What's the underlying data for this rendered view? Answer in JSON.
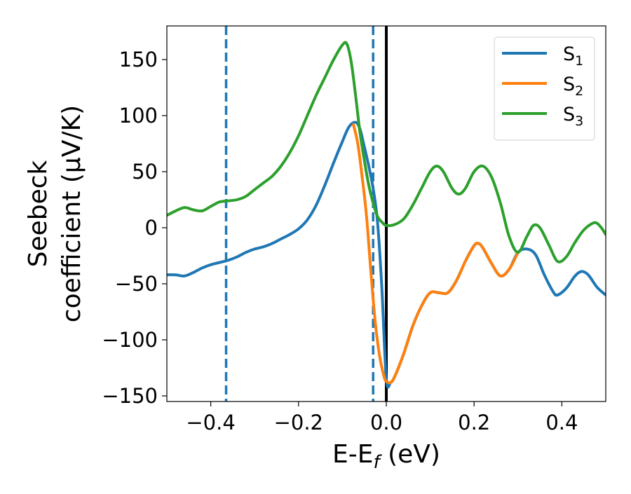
{
  "chart_data": {
    "type": "line",
    "xlabel": "E-E",
    "xlabel_sub": "f",
    "xlabel_unit": " (eV)",
    "ylabel_line1": "Seebeck",
    "ylabel_line2": "coefficient  (μV/K)",
    "xlim": [
      -0.5,
      0.5
    ],
    "ylim": [
      -155,
      180
    ],
    "xticks": [
      -0.4,
      -0.2,
      0.0,
      0.2,
      0.4
    ],
    "xtick_labels": [
      "−0.4",
      "−0.2",
      "0.0",
      "0.2",
      "0.4"
    ],
    "yticks": [
      -150,
      -100,
      -50,
      0,
      50,
      100,
      150
    ],
    "ytick_labels": [
      "−150",
      "−100",
      "−50",
      "0",
      "50",
      "100",
      "150"
    ],
    "grid": false,
    "legend_position": "top-right",
    "vertical_lines": [
      {
        "x": -0.365,
        "style": "dashed",
        "color": "#1f77b4"
      },
      {
        "x": -0.03,
        "style": "dashed",
        "color": "#1f77b4"
      },
      {
        "x": 0.0,
        "style": "solid",
        "color": "#000000"
      }
    ],
    "series": [
      {
        "name": "S",
        "name_sub": "1",
        "color": "#1f77b4",
        "points": [
          [
            -0.5,
            -42
          ],
          [
            -0.48,
            -42
          ],
          [
            -0.46,
            -43
          ],
          [
            -0.44,
            -40
          ],
          [
            -0.42,
            -36
          ],
          [
            -0.4,
            -33
          ],
          [
            -0.38,
            -31
          ],
          [
            -0.36,
            -29
          ],
          [
            -0.34,
            -26
          ],
          [
            -0.32,
            -22
          ],
          [
            -0.3,
            -19
          ],
          [
            -0.28,
            -17
          ],
          [
            -0.26,
            -14
          ],
          [
            -0.24,
            -10
          ],
          [
            -0.22,
            -6
          ],
          [
            -0.2,
            -1
          ],
          [
            -0.18,
            7
          ],
          [
            -0.16,
            20
          ],
          [
            -0.14,
            38
          ],
          [
            -0.12,
            58
          ],
          [
            -0.1,
            77
          ],
          [
            -0.085,
            90
          ],
          [
            -0.07,
            94
          ],
          [
            -0.06,
            88
          ],
          [
            -0.05,
            72
          ],
          [
            -0.04,
            55
          ],
          [
            -0.03,
            35
          ],
          [
            -0.02,
            5
          ],
          [
            -0.01,
            -55
          ],
          [
            0.0,
            -135
          ],
          [
            0.01,
            -138
          ],
          [
            0.02,
            -132
          ],
          [
            0.04,
            -112
          ],
          [
            0.06,
            -88
          ],
          [
            0.08,
            -70
          ],
          [
            0.1,
            -58
          ],
          [
            0.12,
            -58
          ],
          [
            0.14,
            -58
          ],
          [
            0.16,
            -47
          ],
          [
            0.18,
            -30
          ],
          [
            0.2,
            -16
          ],
          [
            0.21,
            -14
          ],
          [
            0.22,
            -18
          ],
          [
            0.24,
            -32
          ],
          [
            0.26,
            -43
          ],
          [
            0.28,
            -37
          ],
          [
            0.3,
            -22
          ],
          [
            0.32,
            -19
          ],
          [
            0.34,
            -24
          ],
          [
            0.36,
            -42
          ],
          [
            0.38,
            -57
          ],
          [
            0.39,
            -60
          ],
          [
            0.41,
            -54
          ],
          [
            0.43,
            -43
          ],
          [
            0.445,
            -39
          ],
          [
            0.46,
            -42
          ],
          [
            0.48,
            -53
          ],
          [
            0.5,
            -60
          ]
        ]
      },
      {
        "name": "S",
        "name_sub": "2",
        "color": "#ff7f0e",
        "points": [
          [
            -0.075,
            92
          ],
          [
            -0.065,
            75
          ],
          [
            -0.055,
            45
          ],
          [
            -0.045,
            10
          ],
          [
            -0.035,
            -40
          ],
          [
            -0.025,
            -85
          ],
          [
            -0.015,
            -115
          ],
          [
            -0.005,
            -133
          ],
          [
            0.0,
            -137
          ],
          [
            0.01,
            -138
          ],
          [
            0.02,
            -132
          ],
          [
            0.04,
            -112
          ],
          [
            0.06,
            -88
          ],
          [
            0.08,
            -70
          ],
          [
            0.1,
            -58
          ],
          [
            0.12,
            -58
          ],
          [
            0.14,
            -58
          ],
          [
            0.16,
            -47
          ],
          [
            0.18,
            -30
          ],
          [
            0.2,
            -16
          ],
          [
            0.21,
            -14
          ],
          [
            0.22,
            -18
          ],
          [
            0.24,
            -32
          ],
          [
            0.26,
            -43
          ],
          [
            0.28,
            -37
          ],
          [
            0.3,
            -22
          ]
        ]
      },
      {
        "name": "S",
        "name_sub": "3",
        "color": "#2ca02c",
        "points": [
          [
            -0.5,
            11
          ],
          [
            -0.48,
            15
          ],
          [
            -0.46,
            18
          ],
          [
            -0.44,
            16
          ],
          [
            -0.42,
            15
          ],
          [
            -0.4,
            19
          ],
          [
            -0.38,
            23
          ],
          [
            -0.36,
            24
          ],
          [
            -0.34,
            25
          ],
          [
            -0.32,
            28
          ],
          [
            -0.3,
            34
          ],
          [
            -0.28,
            40
          ],
          [
            -0.26,
            46
          ],
          [
            -0.24,
            55
          ],
          [
            -0.22,
            67
          ],
          [
            -0.2,
            82
          ],
          [
            -0.18,
            100
          ],
          [
            -0.16,
            118
          ],
          [
            -0.14,
            134
          ],
          [
            -0.12,
            150
          ],
          [
            -0.1,
            163
          ],
          [
            -0.09,
            164
          ],
          [
            -0.08,
            148
          ],
          [
            -0.07,
            118
          ],
          [
            -0.06,
            85
          ],
          [
            -0.05,
            60
          ],
          [
            -0.04,
            38
          ],
          [
            -0.03,
            22
          ],
          [
            -0.02,
            10
          ],
          [
            -0.01,
            5
          ],
          [
            0.0,
            2
          ],
          [
            0.02,
            3
          ],
          [
            0.04,
            8
          ],
          [
            0.06,
            20
          ],
          [
            0.08,
            35
          ],
          [
            0.1,
            50
          ],
          [
            0.115,
            55
          ],
          [
            0.13,
            50
          ],
          [
            0.15,
            35
          ],
          [
            0.165,
            30
          ],
          [
            0.18,
            35
          ],
          [
            0.2,
            50
          ],
          [
            0.22,
            55
          ],
          [
            0.24,
            45
          ],
          [
            0.26,
            22
          ],
          [
            0.28,
            -8
          ],
          [
            0.3,
            -22
          ],
          [
            0.32,
            -8
          ],
          [
            0.335,
            2
          ],
          [
            0.35,
            0
          ],
          [
            0.37,
            -15
          ],
          [
            0.39,
            -30
          ],
          [
            0.41,
            -26
          ],
          [
            0.43,
            -13
          ],
          [
            0.45,
            -2
          ],
          [
            0.47,
            4
          ],
          [
            0.48,
            4
          ],
          [
            0.49,
            0
          ],
          [
            0.5,
            -6
          ]
        ]
      }
    ]
  }
}
